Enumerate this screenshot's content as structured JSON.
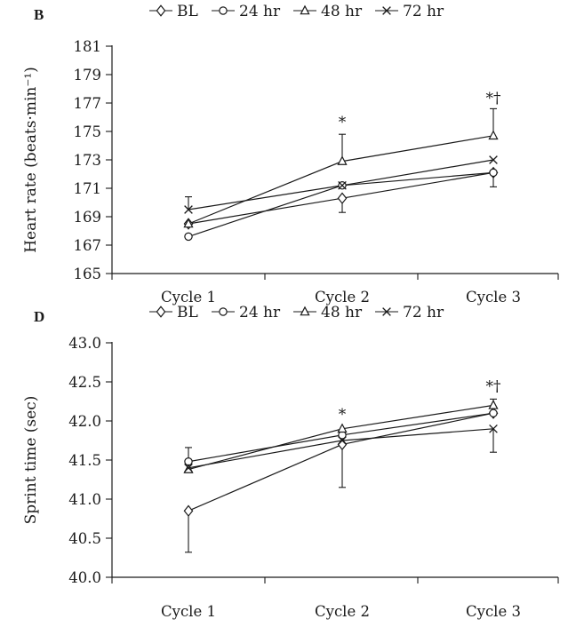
{
  "chart_data": [
    {
      "panel": "B",
      "type": "line",
      "categories": [
        "Cycle 1",
        "Cycle 2",
        "Cycle 3"
      ],
      "ylabel": "Heart rate (beats·min⁻¹)",
      "ylim": [
        165,
        181
      ],
      "yticks": [
        "165",
        "167",
        "169",
        "171",
        "173",
        "175",
        "177",
        "179",
        "181"
      ],
      "series": [
        {
          "name": "BL",
          "marker": "diamond",
          "values": [
            168.5,
            170.3,
            172.1
          ],
          "error_up": [
            0,
            0,
            0
          ],
          "error_down": [
            0,
            1.0,
            1.0
          ]
        },
        {
          "name": "24 hr",
          "marker": "circle",
          "values": [
            167.6,
            171.2,
            172.1
          ],
          "error_up": [
            0,
            0,
            0
          ],
          "error_down": [
            0,
            0,
            0
          ]
        },
        {
          "name": "48 hr",
          "marker": "triangle",
          "values": [
            168.5,
            172.9,
            174.7
          ],
          "error_up": [
            0,
            1.9,
            1.9
          ],
          "error_down": [
            0,
            0,
            0
          ]
        },
        {
          "name": "72 hr",
          "marker": "x",
          "values": [
            169.5,
            171.2,
            173.0
          ],
          "error_up": [
            0.9,
            0,
            0
          ],
          "error_down": [
            0,
            0,
            0
          ]
        }
      ],
      "annotations": [
        {
          "category": "Cycle 2",
          "text": "*",
          "y": 175.3
        },
        {
          "category": "Cycle 3",
          "text": "*†",
          "y": 177.0
        }
      ]
    },
    {
      "panel": "D",
      "type": "line",
      "categories": [
        "Cycle 1",
        "Cycle 2",
        "Cycle 3"
      ],
      "ylabel": "Sprint time (sec)",
      "ylim": [
        40.0,
        43.0
      ],
      "yticks": [
        "40.0",
        "40.5",
        "41.0",
        "41.5",
        "42.0",
        "42.5",
        "43.0"
      ],
      "series": [
        {
          "name": "BL",
          "marker": "diamond",
          "values": [
            40.85,
            41.7,
            42.1
          ],
          "error_up": [
            0,
            0,
            0
          ],
          "error_down": [
            0.53,
            0.55,
            0
          ]
        },
        {
          "name": "24 hr",
          "marker": "circle",
          "values": [
            41.48,
            41.82,
            42.1
          ],
          "error_up": [
            0.18,
            0,
            0
          ],
          "error_down": [
            0,
            0,
            0
          ]
        },
        {
          "name": "48 hr",
          "marker": "triangle",
          "values": [
            41.38,
            41.9,
            42.2
          ],
          "error_up": [
            0,
            0,
            0.08
          ],
          "error_down": [
            0,
            0,
            0
          ]
        },
        {
          "name": "72 hr",
          "marker": "x",
          "values": [
            41.4,
            41.75,
            41.9
          ],
          "error_up": [
            0,
            0,
            0
          ],
          "error_down": [
            0,
            0,
            0.3
          ]
        }
      ],
      "annotations": [
        {
          "category": "Cycle 2",
          "text": "*",
          "y": 42.02
        },
        {
          "category": "Cycle 3",
          "text": "*†",
          "y": 42.38
        }
      ]
    }
  ]
}
